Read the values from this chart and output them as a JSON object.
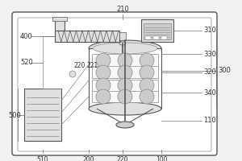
{
  "bg_color": "#f2f2f2",
  "line_color": "#888888",
  "dark_line": "#555555",
  "text_color": "#333333",
  "font_size": 6.0,
  "white": "#ffffff",
  "light_gray": "#e0e0e0",
  "mid_gray": "#cccccc"
}
